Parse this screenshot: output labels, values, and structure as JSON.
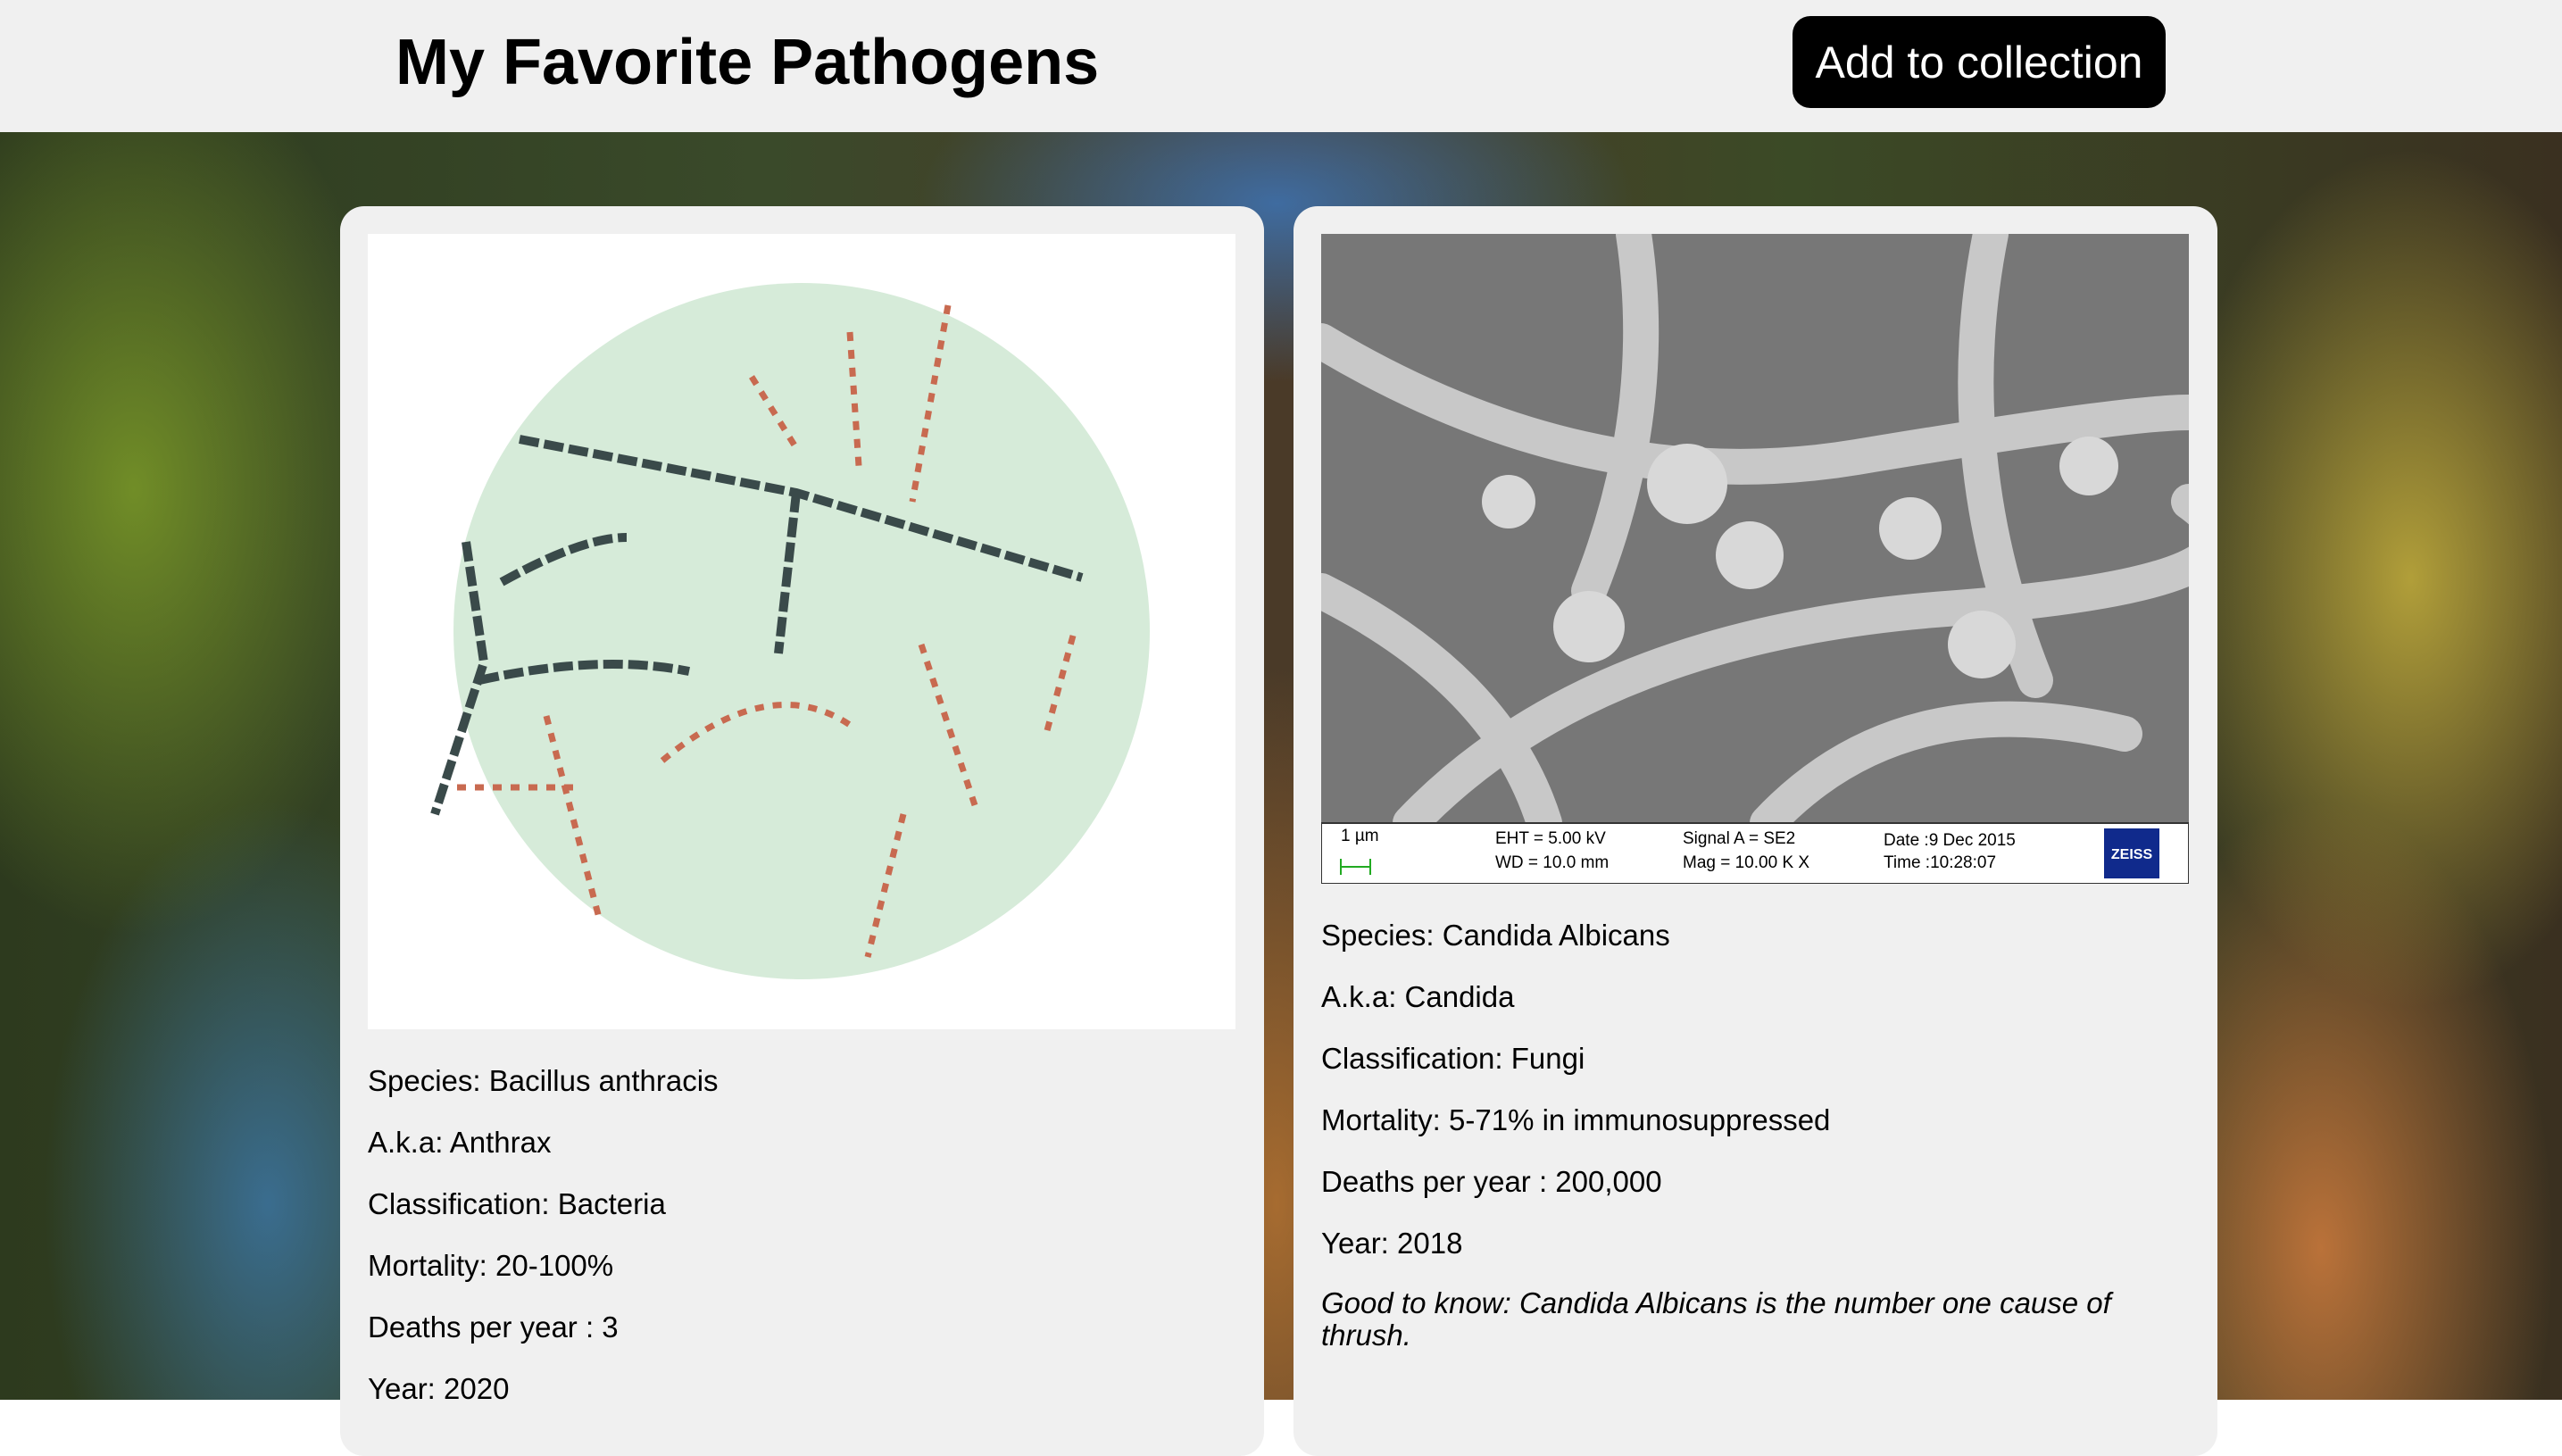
{
  "header": {
    "title": "My Favorite Pathogens",
    "button": "Add to collection"
  },
  "cards": [
    {
      "lines": [
        "Species: Bacillus anthracis",
        "A.k.a: Anthrax",
        "Classification: Bacteria",
        "Mortality: 20-100%",
        "Deaths per year : 3",
        "Year: 2020"
      ]
    },
    {
      "image": {
        "scale": "1 µm",
        "eht": "EHT =  5.00 kV",
        "wd": "WD = 10.0 mm",
        "signal": "Signal A = SE2",
        "mag": "Mag =  10.00 K X",
        "date": "Date :9 Dec 2015",
        "time": "Time :10:28:07",
        "brand": "ZEISS"
      },
      "lines": [
        "Species: Candida Albicans",
        "A.k.a: Candida",
        "Classification: Fungi",
        "Mortality: 5-71% in immunosuppressed",
        "Deaths per year : 200,000",
        "Year: 2018"
      ],
      "note": "Good to know: Candida Albicans is the number one cause of thrush."
    }
  ]
}
